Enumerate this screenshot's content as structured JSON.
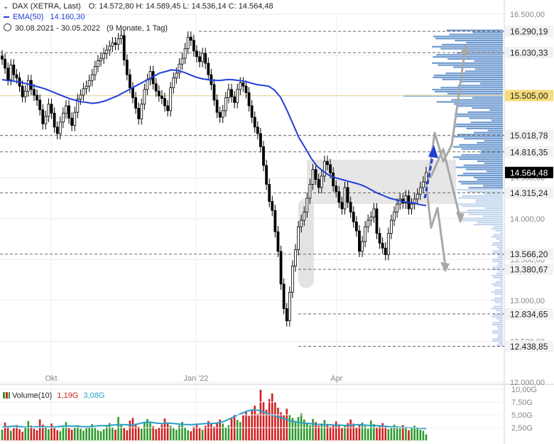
{
  "header": {
    "symbol_line": "DAX (XETRA, Last)",
    "ohlc": "O: 14.572,80  H: 14.589,45  L: 14.536,14  C: 14.564,48",
    "ema_label": "EMA(50)",
    "ema_value": "14.160,30",
    "period": "30.08.2021 - 30.05.2022",
    "period_detail": "(9 Monate, 1 Tag)"
  },
  "volume_legend": {
    "label": "Volume(10)",
    "value1": "1,19G",
    "value2": "3,08G"
  },
  "colors": {
    "ema": "#1f3fd6",
    "candle": "#000000",
    "profile": "#6f9ad0",
    "arrow": "#a8a8a8",
    "dashed_arrow": "#1f3fd6",
    "vol_up": "#2f9a2f",
    "vol_down": "#d02020",
    "vol_ma": "#27a0c8",
    "tag_bg": "#f2f2f2",
    "current_tag": "#000000",
    "highlight_tag": "#f5dc7a"
  },
  "chart_data": {
    "type": "candlestick",
    "y_axis": {
      "min": 12000,
      "max": 16500,
      "ticks": [
        "16.500,00",
        "16.000,00",
        "15.500,00",
        "15.000,00",
        "14.500,00",
        "14.000,00",
        "13.500,00",
        "13.000,00",
        "12.500,00",
        "12.000,00"
      ]
    },
    "x_axis": {
      "ticks": [
        {
          "label": "Okt",
          "pos": 0.12
        },
        {
          "label": "Jan '22",
          "pos": 0.46
        },
        {
          "label": "Apr",
          "pos": 0.79
        }
      ]
    },
    "levels": [
      {
        "value": 16290.19,
        "label": "16.290,19",
        "style": "dashed",
        "tag": "normal"
      },
      {
        "value": 16030.33,
        "label": "16.030,33",
        "style": "dashed",
        "tag": "normal"
      },
      {
        "value": 15505.0,
        "label": "15.505,00",
        "style": "solid",
        "tag": "highlight"
      },
      {
        "value": 15018.78,
        "label": "15.018,78",
        "style": "dashed",
        "tag": "normal"
      },
      {
        "value": 14816.35,
        "label": "14.816,35",
        "style": "dashed",
        "tag": "normal"
      },
      {
        "value": 14564.48,
        "label": "14.564,48",
        "style": "none",
        "tag": "current"
      },
      {
        "value": 14315.24,
        "label": "14.315,24",
        "style": "dashed",
        "tag": "normal"
      },
      {
        "value": 13566.2,
        "label": "13.566,20",
        "style": "dashed",
        "tag": "normal"
      },
      {
        "value": 13380.67,
        "label": "13.380,67",
        "style": "dashed",
        "tag": "normal"
      },
      {
        "value": 12834.65,
        "label": "12.834,65",
        "style": "dashed",
        "tag": "normal"
      },
      {
        "value": 12438.85,
        "label": "12.438,85",
        "style": "dashed",
        "tag": "normal"
      }
    ],
    "closes": [
      15950,
      15840,
      15700,
      15880,
      15760,
      15720,
      15620,
      15490,
      15560,
      15690,
      15580,
      15510,
      15450,
      15330,
      15160,
      15250,
      15400,
      15290,
      15120,
      15040,
      15180,
      15290,
      15380,
      15230,
      15140,
      15300,
      15460,
      15510,
      15590,
      15620,
      15690,
      15760,
      15860,
      15930,
      15960,
      16020,
      16060,
      16110,
      16150,
      16130,
      16200,
      16240,
      15940,
      15760,
      15600,
      15480,
      15350,
      15220,
      15400,
      15580,
      15700,
      15800,
      15650,
      15560,
      15500,
      15470,
      15380,
      15320,
      15600,
      15720,
      15780,
      15890,
      15960,
      16080,
      16220,
      16180,
      16050,
      15980,
      15920,
      16020,
      15900,
      15760,
      15640,
      15450,
      15300,
      15240,
      15320,
      15480,
      15580,
      15490,
      15420,
      15580,
      15660,
      15620,
      15540,
      15380,
      15240,
      15120,
      15040,
      14880,
      14650,
      14420,
      14210,
      14100,
      13840,
      13600,
      13200,
      12900,
      12750,
      13100,
      13420,
      13620,
      13900,
      13980,
      14080,
      14250,
      14420,
      14600,
      14480,
      14380,
      14520,
      14700,
      14660,
      14560,
      14400,
      14330,
      14200,
      14120,
      14380,
      14200,
      14080,
      13960,
      13850,
      13600,
      13720,
      13900,
      13980,
      14020,
      14120,
      13820,
      13700,
      13640,
      13560,
      13820,
      13980,
      14080,
      14180,
      14240,
      14190,
      14280,
      14120,
      14180,
      14240,
      14300,
      14380,
      14450,
      14564
    ],
    "ema": [
      15700,
      15690,
      15680,
      15670,
      15650,
      15630,
      15610,
      15590,
      15560,
      15530,
      15500,
      15470,
      15450,
      15430,
      15420,
      15410,
      15420,
      15440,
      15470,
      15500,
      15540,
      15580,
      15620,
      15660,
      15700,
      15740,
      15780,
      15800,
      15820,
      15810,
      15790,
      15760,
      15730,
      15710,
      15700,
      15690,
      15690,
      15700,
      15700,
      15690,
      15680,
      15660,
      15640,
      15630,
      15620,
      15570,
      15480,
      15330,
      15160,
      14990,
      14870,
      14740,
      14640,
      14580,
      14530,
      14500,
      14480,
      14460,
      14440,
      14420,
      14390,
      14350,
      14310,
      14280,
      14250,
      14230,
      14210,
      14200,
      14190,
      14170,
      14160
    ],
    "volume_scale_max": 10.0,
    "volume_ticks": [
      "10,00G",
      "7,50G",
      "5,00G",
      "2,50G"
    ],
    "volumes": [
      2.1,
      3.5,
      2.8,
      1.9,
      2.4,
      3.0,
      2.2,
      1.7,
      2.6,
      3.8,
      2.9,
      2.3,
      2.0,
      4.1,
      3.1,
      2.5,
      2.2,
      3.3,
      2.7,
      2.0,
      1.8,
      2.9,
      3.6,
      2.4,
      2.1,
      2.6,
      3.0,
      2.3,
      1.9,
      2.4,
      2.8,
      3.2,
      2.5,
      2.0,
      1.8,
      2.2,
      2.9,
      3.4,
      2.6,
      2.1,
      4.6,
      3.2,
      2.4,
      2.0,
      3.9,
      4.4,
      3.1,
      2.7,
      2.3,
      3.6,
      4.2,
      3.4,
      2.8,
      2.2,
      2.5,
      3.1,
      4.3,
      3.5,
      2.9,
      2.4,
      2.1,
      3.0,
      3.6,
      2.6,
      2.0,
      1.8,
      2.7,
      3.3,
      2.4,
      2.1,
      2.9,
      3.8,
      3.2,
      2.7,
      3.5,
      4.1,
      3.3,
      2.6,
      3.0,
      4.4,
      5.1,
      4.0,
      3.6,
      4.9,
      5.6,
      4.8,
      5.9,
      6.8,
      5.2,
      9.9,
      7.6,
      6.0,
      8.1,
      9.2,
      7.5,
      6.4,
      5.5,
      4.9,
      6.2,
      5.0,
      4.4,
      3.8,
      4.6,
      5.3,
      4.1,
      3.5,
      3.0,
      4.2,
      3.6,
      2.9,
      3.3,
      4.0,
      3.2,
      2.7,
      3.1,
      3.7,
      2.9,
      2.4,
      2.8,
      3.4,
      4.1,
      3.3,
      2.6,
      3.0,
      3.5,
      2.8,
      2.3,
      3.9,
      3.2,
      2.6,
      2.9,
      3.4,
      2.7,
      2.2,
      2.6,
      3.1,
      2.8,
      2.4,
      3.0,
      2.5,
      2.0,
      2.4,
      2.9,
      2.6,
      2.1,
      1.9,
      1.2
    ],
    "volume_ma": [
      2.6,
      2.7,
      2.8,
      2.7,
      2.6,
      2.6,
      2.7,
      2.7,
      2.6,
      2.7,
      2.8,
      2.8,
      2.8,
      2.7,
      2.7,
      2.8,
      2.9,
      2.9,
      3.0,
      3.1,
      3.1,
      3.0,
      3.2,
      3.5,
      3.6,
      3.4,
      3.3,
      3.4,
      3.3,
      3.2,
      3.1,
      3.1,
      3.2,
      3.3,
      3.3,
      3.4,
      3.7,
      4.2,
      4.8,
      5.3,
      5.8,
      6.0,
      5.8,
      5.3,
      4.9,
      4.6,
      4.2,
      3.8,
      3.6,
      3.4,
      3.3,
      3.2,
      3.1,
      3.1,
      3.0,
      3.0,
      2.9,
      3.0,
      3.1,
      3.0,
      2.9,
      2.9,
      2.8,
      2.7,
      2.6,
      2.6,
      2.5,
      2.5,
      2.4,
      2.3
    ]
  }
}
